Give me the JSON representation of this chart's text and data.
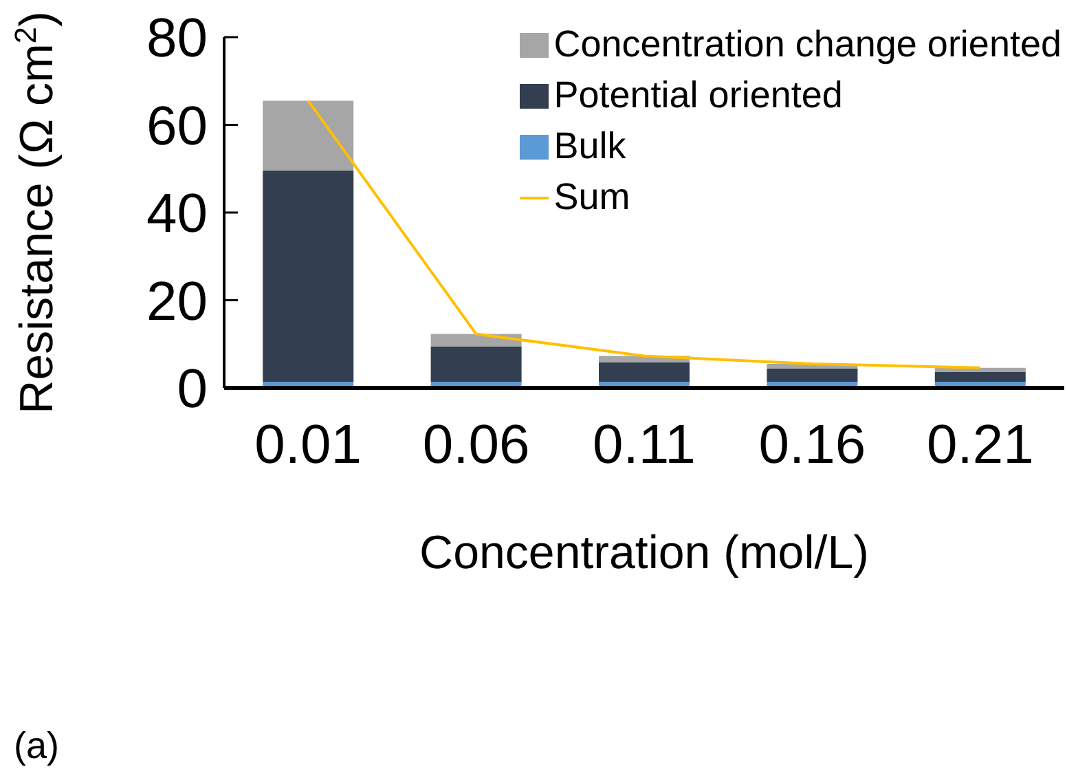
{
  "chart_data": {
    "type": "bar",
    "stacked": true,
    "xlabel": "Concentration (mol/L)",
    "ylabel": "Resistance (Ω cm$^{2}$)",
    "categories": [
      "0.01",
      "0.06",
      "0.11",
      "0.16",
      "0.21"
    ],
    "series": [
      {
        "name": "Bulk",
        "color": "#5b9bd5",
        "values": [
          1.4,
          1.4,
          1.4,
          1.4,
          1.4
        ]
      },
      {
        "name": "Potential oriented",
        "color": "#333f50",
        "values": [
          48.2,
          8.1,
          4.4,
          3.0,
          2.2
        ]
      },
      {
        "name": "Concentration change oriented",
        "color": "#a6a6a6",
        "values": [
          15.9,
          2.8,
          1.5,
          1.1,
          1.0
        ]
      },
      {
        "name": "Sum",
        "type": "line",
        "color": "#ffc000",
        "values": [
          65.5,
          12.3,
          7.3,
          5.5,
          4.6
        ]
      }
    ],
    "ylim": [
      0,
      80
    ],
    "yticks": [
      0,
      20,
      40,
      60,
      80
    ],
    "grid": false,
    "legend": "top right",
    "marker": "none",
    "annotations": [
      "(a)"
    ]
  }
}
